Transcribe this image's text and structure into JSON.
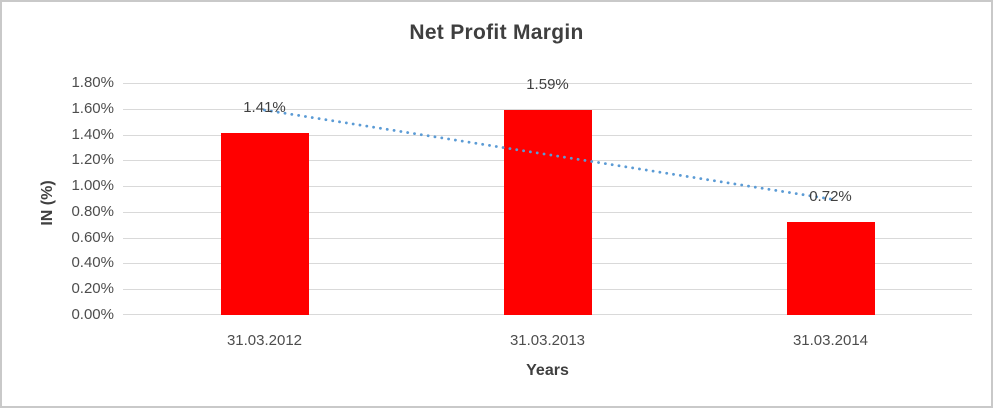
{
  "window": {
    "background": "#ffffff",
    "border_color": "#c9c9c9"
  },
  "chart_data": {
    "type": "bar",
    "title": "Net Profit Margin",
    "xlabel": "Years",
    "ylabel": "IN (%)",
    "categories": [
      "31.03.2012",
      "31.03.2013",
      "31.03.2014"
    ],
    "series": [
      {
        "name": "Net Profit Margin",
        "values": [
          1.41,
          1.59,
          0.72
        ]
      }
    ],
    "data_labels": [
      "1.41%",
      "1.59%",
      "0.72%"
    ],
    "ylim": [
      0,
      1.8
    ],
    "ytick_step": 0.2,
    "ytick_labels": [
      "0.00%",
      "0.20%",
      "0.40%",
      "0.60%",
      "0.80%",
      "1.00%",
      "1.20%",
      "1.40%",
      "1.60%",
      "1.80%"
    ],
    "grid": true,
    "legend": "none",
    "trendline": {
      "type": "linear",
      "style": "dotted",
      "start_value": 1.59,
      "end_value": 0.9,
      "color": "#5b9bd5"
    },
    "colors": {
      "bar": "#ff0000",
      "gridline": "#d9d9d9",
      "title_text": "#3f3f3f",
      "axis_title_text": "#3f3f3f",
      "tick_label_text": "#4d4d4d",
      "data_label_text": "#404040"
    }
  }
}
